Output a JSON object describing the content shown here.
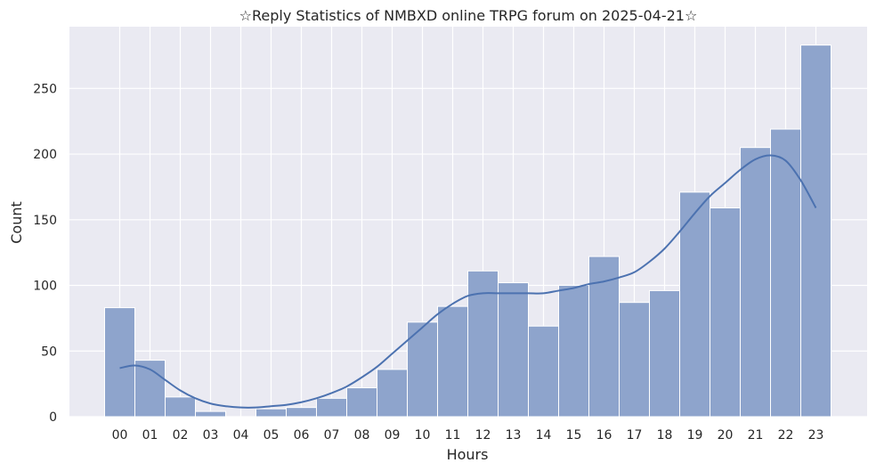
{
  "chart_data": {
    "type": "bar",
    "title": "☆Reply Statistics of NMBXD online TRPG forum on 2025-04-21☆",
    "xlabel": "Hours",
    "ylabel": "Count",
    "categories": [
      "00",
      "01",
      "02",
      "03",
      "04",
      "05",
      "06",
      "07",
      "08",
      "09",
      "10",
      "11",
      "12",
      "13",
      "14",
      "15",
      "16",
      "17",
      "18",
      "19",
      "20",
      "21",
      "22",
      "23"
    ],
    "values": [
      83,
      43,
      15,
      4,
      0,
      6,
      7,
      14,
      22,
      36,
      72,
      84,
      111,
      102,
      69,
      100,
      122,
      87,
      96,
      171,
      159,
      205,
      219,
      283
    ],
    "yticks": [
      0,
      50,
      100,
      150,
      200,
      250
    ],
    "ylim": [
      0,
      297
    ],
    "kde": {
      "x": [
        0,
        0.5,
        1,
        1.5,
        2,
        2.5,
        3,
        3.5,
        4,
        4.5,
        5,
        5.5,
        6,
        6.5,
        7,
        7.5,
        8,
        8.5,
        9,
        9.5,
        10,
        10.5,
        11,
        11.5,
        12,
        12.5,
        13,
        13.5,
        14,
        14.5,
        15,
        15.5,
        16,
        16.5,
        17,
        17.5,
        18,
        18.5,
        19,
        19.5,
        20,
        20.5,
        21,
        21.5,
        22,
        22.5,
        23
      ],
      "y": [
        37,
        39,
        36,
        28,
        20,
        14,
        10,
        8,
        7,
        7,
        8,
        9,
        11,
        14,
        18,
        23,
        30,
        38,
        48,
        58,
        68,
        78,
        86,
        92,
        94,
        94,
        94,
        94,
        94,
        96,
        98,
        101,
        103,
        106,
        110,
        118,
        128,
        141,
        155,
        168,
        178,
        188,
        196,
        199,
        195,
        180,
        159
      ]
    },
    "grid": true,
    "colors": {
      "bar": "#8ea4cc",
      "line": "#4c72b0",
      "background": "#eaeaf2",
      "grid": "#ffffff"
    }
  }
}
